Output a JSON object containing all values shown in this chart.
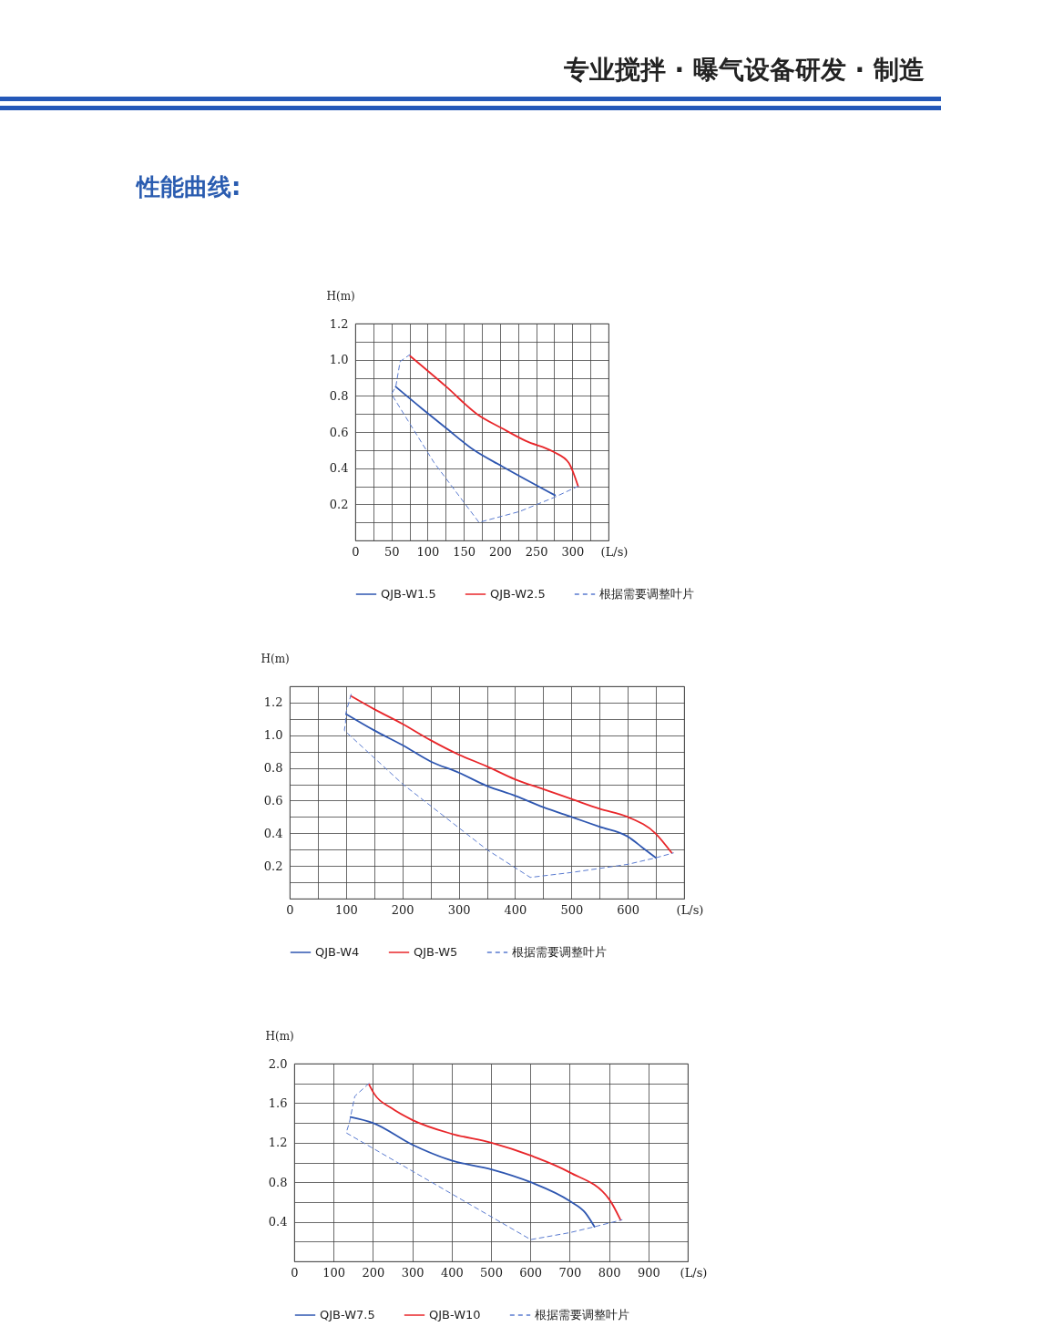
{
  "chart_data": [
    {
      "type": "line",
      "title": "性能曲线:",
      "annotations": [
        "专业搅拌 · 曝气设备研发 · 制造"
      ],
      "xlabel": "(L/s)",
      "ylabel": "H(m)",
      "xlim": [
        0,
        350
      ],
      "ylim": [
        0,
        1.2
      ],
      "xticks": [
        0,
        {
          "value": 25,
          "label": null
        },
        50,
        {
          "value": 75,
          "label": null
        },
        100,
        {
          "value": 125,
          "label": null
        },
        150,
        {
          "value": 175,
          "label": null
        },
        200,
        {
          "value": 225,
          "label": null
        },
        250,
        {
          "value": 275,
          "label": null
        },
        300,
        {
          "value": 325,
          "label": null
        },
        {
          "value": 350,
          "label": null
        }
      ],
      "yticks": [
        {
          "value": 0,
          "label": null
        },
        {
          "value": 0.1,
          "label": null
        },
        0.2,
        {
          "value": 0.3,
          "label": null
        },
        0.4,
        {
          "value": 0.5,
          "label": null
        },
        0.6,
        {
          "value": 0.7,
          "label": null
        },
        0.8,
        {
          "value": 0.9,
          "label": null
        },
        {
          "value": 1,
          "label": "1.0"
        },
        {
          "value": 1.1,
          "label": null
        },
        1.2
      ],
      "grid": true,
      "legend": "bottom",
      "series": [
        {
          "name": "QJB-W1.5",
          "color": "#2e56b0",
          "line_style": "solid",
          "x": [
            56,
            92,
            126,
            164,
            203,
            276
          ],
          "values": [
            0.85,
            0.73,
            0.62,
            0.5,
            0.41,
            0.25
          ]
        },
        {
          "name": "QJB-W2.5",
          "color": "#e8262a",
          "line_style": "solid",
          "x": [
            76,
            126,
            168,
            203,
            236,
            274,
            295,
            308
          ],
          "values": [
            1.02,
            0.85,
            0.7,
            0.62,
            0.55,
            0.49,
            0.43,
            0.3
          ]
        },
        {
          "name": "根据需要调整叶片",
          "color": "#5a7bd0",
          "line_style": "dashed",
          "x": [
            76,
            62,
            56,
            50,
            109,
            171,
            227,
            276,
            308
          ],
          "values": [
            1.03,
            0.99,
            0.85,
            0.81,
            0.43,
            0.1,
            0.16,
            0.24,
            0.3
          ]
        }
      ]
    },
    {
      "type": "line",
      "xlabel": "(L/s)",
      "ylabel": "H(m)",
      "xlim": [
        0,
        700
      ],
      "ylim": [
        0,
        1.3
      ],
      "xticks": [
        0,
        {
          "value": 50,
          "label": null
        },
        100,
        {
          "value": 150,
          "label": null
        },
        200,
        {
          "value": 250,
          "label": null
        },
        300,
        {
          "value": 350,
          "label": null
        },
        400,
        {
          "value": 450,
          "label": null
        },
        500,
        {
          "value": 550,
          "label": null
        },
        600,
        {
          "value": 650,
          "label": null
        },
        {
          "value": 700,
          "label": null
        }
      ],
      "yticks": [
        {
          "value": 0,
          "label": null
        },
        {
          "value": 0.1,
          "label": null
        },
        0.2,
        {
          "value": 0.3,
          "label": null
        },
        0.4,
        {
          "value": 0.5,
          "label": null
        },
        0.6,
        {
          "value": 0.7,
          "label": null
        },
        0.8,
        {
          "value": 0.9,
          "label": null
        },
        {
          "value": 1,
          "label": "1.0"
        },
        {
          "value": 1.1,
          "label": null
        },
        1.2,
        {
          "value": 1.3,
          "label": null
        }
      ],
      "grid": true,
      "legend": "bottom",
      "series": [
        {
          "name": "QJB-W4",
          "color": "#2e56b0",
          "line_style": "solid",
          "x": [
            100,
            150,
            200,
            250,
            301,
            350,
            400,
            450,
            500,
            550,
            600,
            627,
            650
          ],
          "values": [
            1.13,
            1.03,
            0.94,
            0.84,
            0.77,
            0.69,
            0.63,
            0.56,
            0.5,
            0.44,
            0.38,
            0.31,
            0.25
          ]
        },
        {
          "name": "QJB-W5",
          "color": "#e8262a",
          "line_style": "solid",
          "x": [
            109,
            150,
            200,
            250,
            301,
            350,
            400,
            450,
            500,
            550,
            600,
            649,
            678
          ],
          "values": [
            1.24,
            1.16,
            1.07,
            0.97,
            0.88,
            0.81,
            0.73,
            0.67,
            0.61,
            0.55,
            0.5,
            0.4,
            0.28
          ]
        },
        {
          "name": "根据需要调整叶片",
          "color": "#5a7bd0",
          "line_style": "dashed",
          "x": [
            109,
            100,
            99,
            97,
            201,
            350,
            427,
            500,
            600,
            650,
            681
          ],
          "values": [
            1.25,
            1.14,
            1.07,
            1.03,
            0.7,
            0.3,
            0.13,
            0.16,
            0.21,
            0.25,
            0.28
          ]
        }
      ]
    },
    {
      "type": "line",
      "xlabel": "(L/s)",
      "ylabel": "H(m)",
      "xlim": [
        0,
        1000
      ],
      "ylim": [
        0,
        2.0
      ],
      "xticks": [
        0,
        100,
        200,
        300,
        400,
        500,
        600,
        700,
        800,
        900,
        {
          "value": 1000,
          "label": null
        }
      ],
      "yticks": [
        {
          "value": 0,
          "label": null
        },
        {
          "value": 0.2,
          "label": null
        },
        0.4,
        {
          "value": 0.6,
          "label": null
        },
        0.8,
        {
          "value": 1,
          "label": null
        },
        1.2,
        {
          "value": 1.4,
          "label": null
        },
        1.6,
        {
          "value": 1.8,
          "label": null
        },
        {
          "value": 2,
          "label": "2.0"
        }
      ],
      "grid": true,
      "legend": "bottom",
      "series": [
        {
          "name": "QJB-W7.5",
          "color": "#2e56b0",
          "line_style": "solid",
          "x": [
            143,
            200,
            300,
            400,
            501,
            601,
            700,
            740,
            763
          ],
          "values": [
            1.46,
            1.4,
            1.18,
            1.02,
            0.93,
            0.8,
            0.61,
            0.49,
            0.35
          ]
        },
        {
          "name": "QJB-W10",
          "color": "#e8262a",
          "line_style": "solid",
          "x": [
            190,
            204,
            247,
            300,
            400,
            501,
            601,
            700,
            800,
            829
          ],
          "values": [
            1.79,
            1.69,
            1.55,
            1.43,
            1.29,
            1.2,
            1.07,
            0.9,
            0.63,
            0.42
          ]
        },
        {
          "name": "根据需要调整叶片",
          "color": "#5a7bd0",
          "line_style": "dashed",
          "x": [
            190,
            154,
            143,
            140,
            132,
            601,
            700,
            763,
            833
          ],
          "values": [
            1.8,
            1.67,
            1.46,
            1.4,
            1.3,
            0.22,
            0.29,
            0.35,
            0.42
          ]
        }
      ]
    }
  ]
}
